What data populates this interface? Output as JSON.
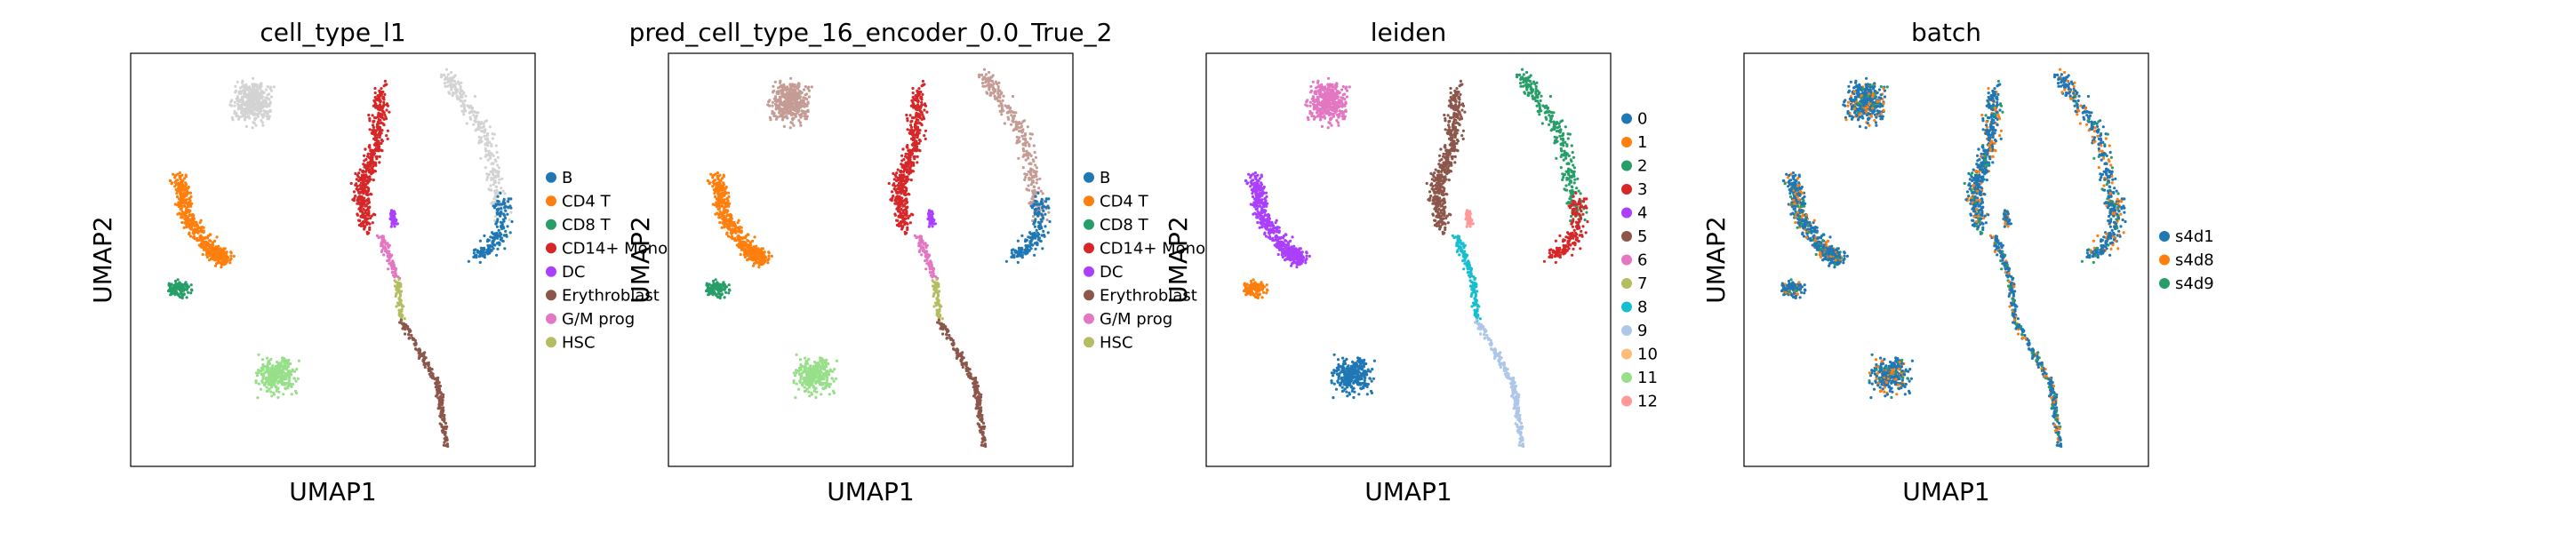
{
  "chart_data": [
    {
      "type": "scatter",
      "title": "cell_type_l1",
      "xlabel": "UMAP1",
      "ylabel": "UMAP2",
      "legend": "right",
      "legend_entries": [
        {
          "label": "B",
          "color": "#1f77b4"
        },
        {
          "label": "CD4 T",
          "color": "#ff7f0e"
        },
        {
          "label": "CD8 T",
          "color": "#279e68"
        },
        {
          "label": "CD14+ Mono",
          "color": "#d62728"
        },
        {
          "label": "DC",
          "color": "#aa40fc"
        },
        {
          "label": "Erythroblast",
          "color": "#8c564b"
        },
        {
          "label": "G/M prog",
          "color": "#e377c2"
        },
        {
          "label": "HSC",
          "color": "#b5bd61"
        }
      ]
    },
    {
      "type": "scatter",
      "title": "pred_cell_type_16_encoder_0.0_True_2",
      "xlabel": "UMAP1",
      "ylabel": "UMAP2",
      "legend": "right",
      "legend_entries": [
        {
          "label": "B",
          "color": "#1f77b4"
        },
        {
          "label": "CD4 T",
          "color": "#ff7f0e"
        },
        {
          "label": "CD8 T",
          "color": "#279e68"
        },
        {
          "label": "CD14+ Mono",
          "color": "#d62728"
        },
        {
          "label": "DC",
          "color": "#aa40fc"
        },
        {
          "label": "Erythroblast",
          "color": "#8c564b"
        },
        {
          "label": "G/M prog",
          "color": "#e377c2"
        },
        {
          "label": "HSC",
          "color": "#b5bd61"
        }
      ]
    },
    {
      "type": "scatter",
      "title": "leiden",
      "xlabel": "UMAP1",
      "ylabel": "UMAP2",
      "legend": "right",
      "legend_entries": [
        {
          "label": "0",
          "color": "#1f77b4"
        },
        {
          "label": "1",
          "color": "#ff7f0e"
        },
        {
          "label": "2",
          "color": "#279e68"
        },
        {
          "label": "3",
          "color": "#d62728"
        },
        {
          "label": "4",
          "color": "#aa40fc"
        },
        {
          "label": "5",
          "color": "#8c564b"
        },
        {
          "label": "6",
          "color": "#e377c2"
        },
        {
          "label": "7",
          "color": "#b5bd61"
        },
        {
          "label": "8",
          "color": "#17becf"
        },
        {
          "label": "9",
          "color": "#aec7e8"
        },
        {
          "label": "10",
          "color": "#ffbb78"
        },
        {
          "label": "11",
          "color": "#98df8a"
        },
        {
          "label": "12",
          "color": "#ff9896"
        }
      ]
    },
    {
      "type": "scatter",
      "title": "batch",
      "xlabel": "UMAP1",
      "ylabel": "UMAP2",
      "legend": "right",
      "legend_entries": [
        {
          "label": "s4d1",
          "color": "#1f77b4"
        },
        {
          "label": "s4d8",
          "color": "#ff7f0e"
        },
        {
          "label": "s4d9",
          "color": "#279e68"
        }
      ]
    }
  ]
}
